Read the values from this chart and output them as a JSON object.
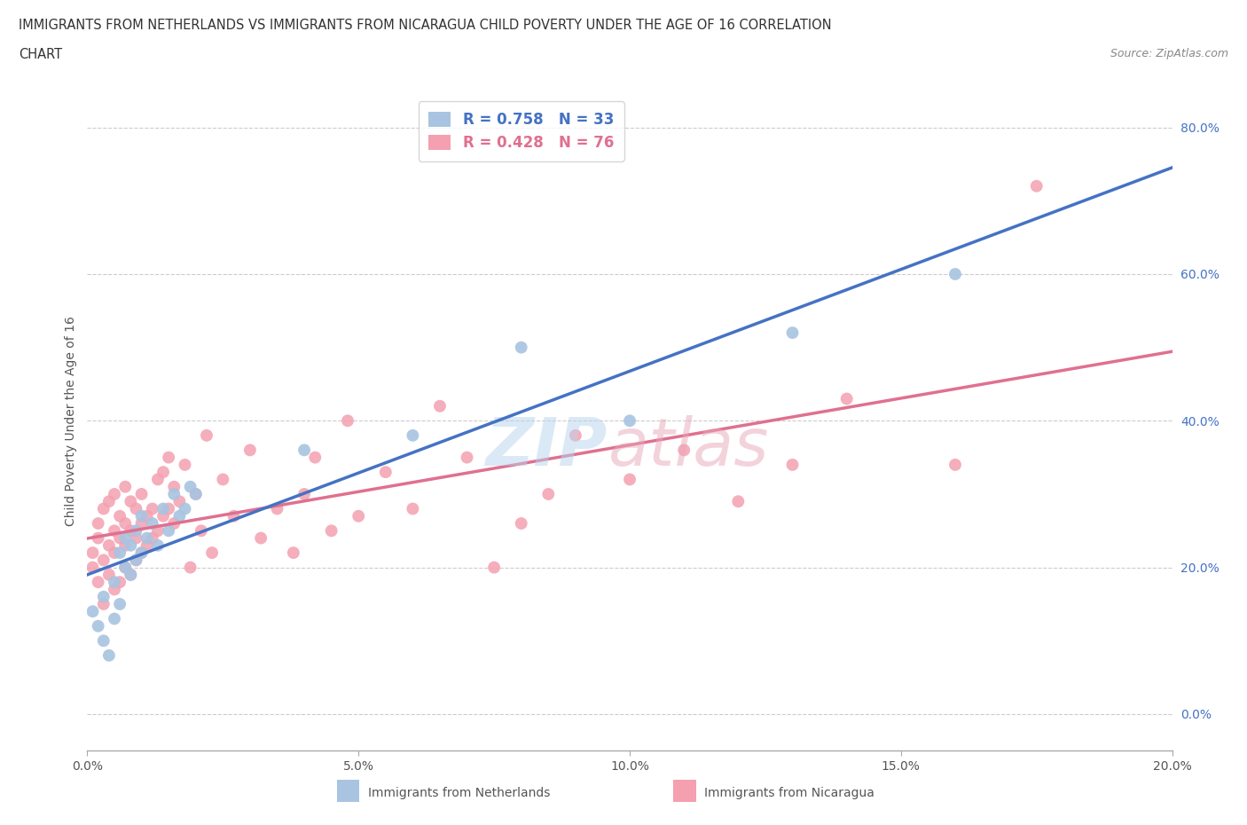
{
  "title_line1": "IMMIGRANTS FROM NETHERLANDS VS IMMIGRANTS FROM NICARAGUA CHILD POVERTY UNDER THE AGE OF 16 CORRELATION",
  "title_line2": "CHART",
  "source": "Source: ZipAtlas.com",
  "ylabel": "Child Poverty Under the Age of 16",
  "xlabel_netherlands": "Immigrants from Netherlands",
  "xlabel_nicaragua": "Immigrants from Nicaragua",
  "netherlands_color": "#a8c4e0",
  "nicaragua_color": "#f4a0b0",
  "netherlands_line_color": "#4472c4",
  "nicaragua_line_color": "#e07090",
  "R_netherlands": 0.758,
  "N_netherlands": 33,
  "R_nicaragua": 0.428,
  "N_nicaragua": 76,
  "xlim": [
    0.0,
    0.2
  ],
  "ylim": [
    -0.05,
    0.85
  ],
  "yticks": [
    0.0,
    0.2,
    0.4,
    0.6,
    0.8
  ],
  "xticks": [
    0.0,
    0.05,
    0.1,
    0.15,
    0.2
  ],
  "netherlands_x": [
    0.001,
    0.002,
    0.003,
    0.003,
    0.004,
    0.005,
    0.005,
    0.006,
    0.006,
    0.007,
    0.007,
    0.008,
    0.008,
    0.009,
    0.009,
    0.01,
    0.01,
    0.011,
    0.012,
    0.013,
    0.014,
    0.015,
    0.016,
    0.017,
    0.018,
    0.019,
    0.02,
    0.04,
    0.06,
    0.08,
    0.1,
    0.13,
    0.16
  ],
  "netherlands_y": [
    0.14,
    0.12,
    0.1,
    0.16,
    0.08,
    0.13,
    0.18,
    0.22,
    0.15,
    0.2,
    0.24,
    0.19,
    0.23,
    0.21,
    0.25,
    0.22,
    0.27,
    0.24,
    0.26,
    0.23,
    0.28,
    0.25,
    0.3,
    0.27,
    0.28,
    0.31,
    0.3,
    0.36,
    0.38,
    0.5,
    0.4,
    0.52,
    0.6
  ],
  "nicaragua_x": [
    0.001,
    0.001,
    0.002,
    0.002,
    0.002,
    0.003,
    0.003,
    0.003,
    0.004,
    0.004,
    0.004,
    0.005,
    0.005,
    0.005,
    0.005,
    0.006,
    0.006,
    0.006,
    0.007,
    0.007,
    0.007,
    0.007,
    0.008,
    0.008,
    0.008,
    0.009,
    0.009,
    0.009,
    0.01,
    0.01,
    0.01,
    0.011,
    0.011,
    0.012,
    0.012,
    0.013,
    0.013,
    0.014,
    0.014,
    0.015,
    0.015,
    0.016,
    0.016,
    0.017,
    0.018,
    0.019,
    0.02,
    0.021,
    0.022,
    0.023,
    0.025,
    0.027,
    0.03,
    0.032,
    0.035,
    0.038,
    0.04,
    0.042,
    0.045,
    0.048,
    0.05,
    0.055,
    0.06,
    0.065,
    0.07,
    0.075,
    0.08,
    0.085,
    0.09,
    0.1,
    0.11,
    0.12,
    0.13,
    0.14,
    0.16,
    0.175
  ],
  "nicaragua_y": [
    0.2,
    0.22,
    0.18,
    0.24,
    0.26,
    0.15,
    0.21,
    0.28,
    0.19,
    0.23,
    0.29,
    0.17,
    0.22,
    0.25,
    0.3,
    0.18,
    0.24,
    0.27,
    0.2,
    0.23,
    0.26,
    0.31,
    0.19,
    0.25,
    0.29,
    0.21,
    0.24,
    0.28,
    0.22,
    0.26,
    0.3,
    0.23,
    0.27,
    0.24,
    0.28,
    0.25,
    0.32,
    0.27,
    0.33,
    0.28,
    0.35,
    0.26,
    0.31,
    0.29,
    0.34,
    0.2,
    0.3,
    0.25,
    0.38,
    0.22,
    0.32,
    0.27,
    0.36,
    0.24,
    0.28,
    0.22,
    0.3,
    0.35,
    0.25,
    0.4,
    0.27,
    0.33,
    0.28,
    0.42,
    0.35,
    0.2,
    0.26,
    0.3,
    0.38,
    0.32,
    0.36,
    0.29,
    0.34,
    0.43,
    0.34,
    0.72
  ]
}
